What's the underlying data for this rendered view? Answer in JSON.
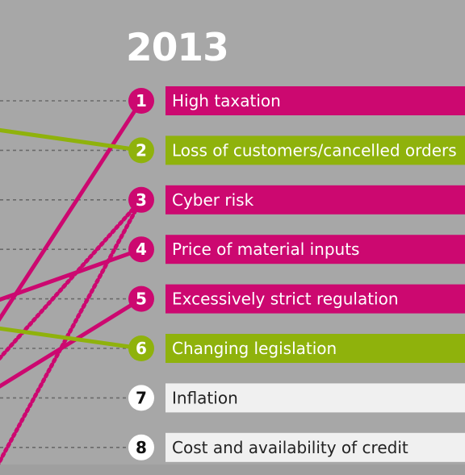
{
  "title": "2013",
  "colors": {
    "magenta": "#cc0870",
    "green": "#8fb20c",
    "neutral": "#f0f0f0",
    "background": "#a7a7a7",
    "dotted_guide": "#6a6a6a"
  },
  "chart_data": {
    "type": "ranking",
    "title": "2013",
    "items": [
      {
        "rank": "1",
        "label": "High taxation",
        "color": "magenta"
      },
      {
        "rank": "2",
        "label": "Loss of customers/cancelled orders",
        "color": "green"
      },
      {
        "rank": "3",
        "label": "Cyber risk",
        "color": "magenta"
      },
      {
        "rank": "4",
        "label": "Price of material inputs",
        "color": "magenta"
      },
      {
        "rank": "5",
        "label": "Excessively strict regulation",
        "color": "magenta"
      },
      {
        "rank": "6",
        "label": "Changing legislation",
        "color": "green"
      },
      {
        "rank": "7",
        "label": "Inflation",
        "color": "neutral"
      },
      {
        "rank": "8",
        "label": "Cost and availability of credit",
        "color": "neutral"
      }
    ],
    "connectors": [
      {
        "to_rank": 1,
        "color": "magenta",
        "style": "solid"
      },
      {
        "to_rank": 2,
        "color": "green",
        "style": "solid"
      },
      {
        "to_rank": 3,
        "color": "magenta",
        "style": "dotted"
      },
      {
        "to_rank": 3,
        "color": "magenta",
        "style": "dotted"
      },
      {
        "to_rank": 4,
        "color": "magenta",
        "style": "solid"
      },
      {
        "to_rank": 5,
        "color": "magenta",
        "style": "solid"
      },
      {
        "to_rank": 6,
        "color": "green",
        "style": "solid"
      }
    ]
  }
}
